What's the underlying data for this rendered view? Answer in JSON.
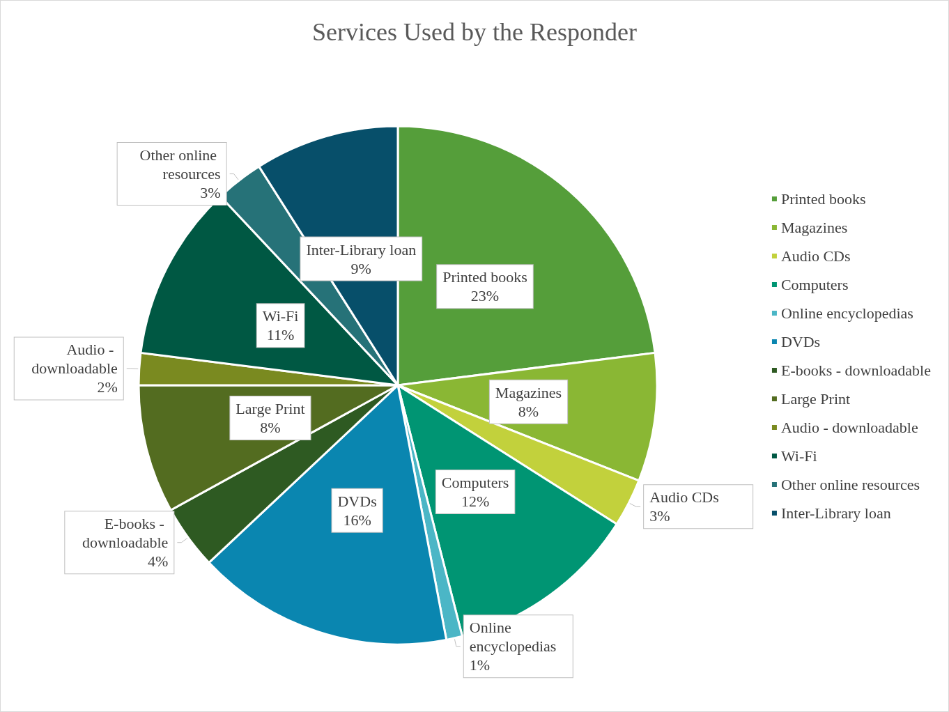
{
  "chart_data": {
    "type": "pie",
    "title": "Services Used by the Responder",
    "categories": [
      "Printed books",
      "Magazines",
      "Audio CDs",
      "Computers",
      "Online encyclopedias",
      "DVDs",
      "E-books - downloadable",
      "Large Print",
      "Audio - downloadable",
      "Wi-Fi",
      "Other online resources",
      "Inter-Library loan"
    ],
    "values": [
      23,
      8,
      3,
      12,
      1,
      16,
      4,
      8,
      2,
      11,
      3,
      9
    ],
    "colors": [
      "#559e3a",
      "#8ab734",
      "#c2d13c",
      "#009573",
      "#4bb6c6",
      "#0a86b0",
      "#2e5a22",
      "#536c20",
      "#7a8a20",
      "#005843",
      "#267278",
      "#074f6a"
    ],
    "value_labels": [
      "23%",
      "8%",
      "3%",
      "12%",
      "1%",
      "16%",
      "4%",
      "8%",
      "2%",
      "11%",
      "3%",
      "9%"
    ],
    "legend": "right"
  }
}
